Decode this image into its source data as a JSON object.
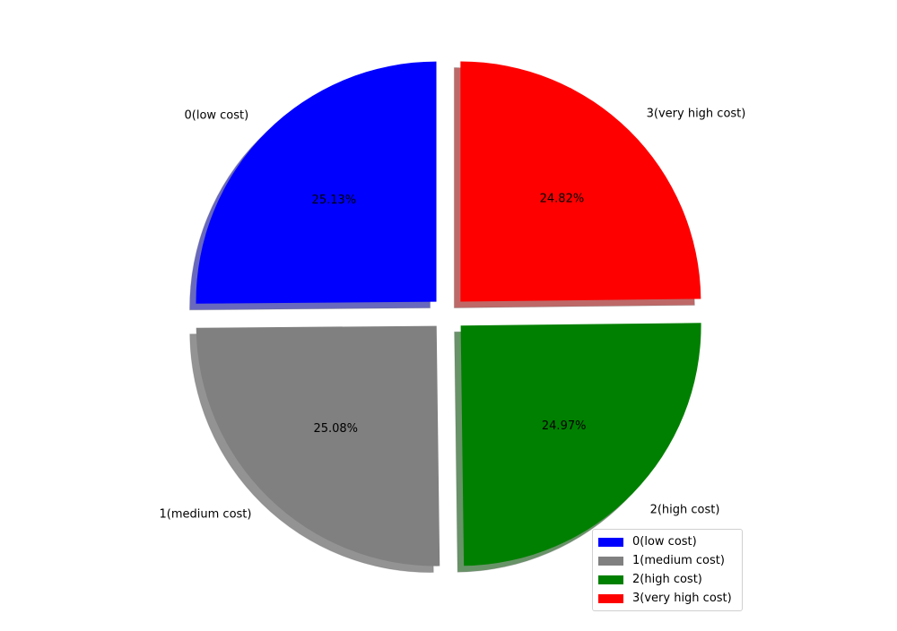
{
  "chart_data": {
    "type": "pie",
    "categories": [
      "0(low cost)",
      "1(medium cost)",
      "2(high cost)",
      "3(very high cost)"
    ],
    "values": [
      25.13,
      25.08,
      24.97,
      24.82
    ],
    "percent_labels": [
      "25.13%",
      "25.08%",
      "24.97%",
      "24.82%"
    ],
    "colors": [
      "#0000ff",
      "#808080",
      "#008000",
      "#ff0000"
    ],
    "exploded": true,
    "shadow": true,
    "start_angle_deg": 90,
    "direction": "counterclockwise",
    "legend": {
      "placement": "bottom-right",
      "entries": [
        "0(low cost)",
        "1(medium cost)",
        "2(high cost)",
        "3(very high cost)"
      ]
    }
  }
}
